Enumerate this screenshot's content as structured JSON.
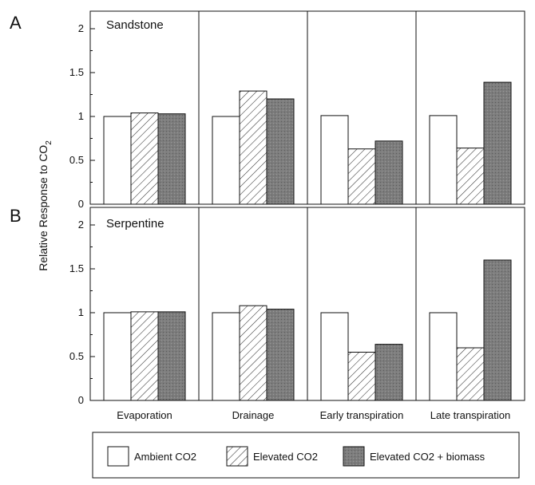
{
  "chart_data": {
    "type": "bar",
    "ylabel": "Relative Response to CO",
    "ylabel_sub": "2",
    "categories": [
      "Evaporation",
      "Drainage",
      "Early transpiration",
      "Late transpiration"
    ],
    "ylim": [
      0,
      2.2
    ],
    "yticks": [
      "0",
      "0.5",
      "1",
      "1.5",
      "2"
    ],
    "grid": false,
    "legend_position": "bottom",
    "legend": [
      {
        "name": "Ambient CO2",
        "style": "white"
      },
      {
        "name": "Elevated CO2",
        "style": "hatched"
      },
      {
        "name": "Elevated CO2 + biomass",
        "style": "gray"
      }
    ],
    "panels": [
      {
        "letter": "A",
        "title": "Sandstone",
        "series": [
          {
            "name": "Ambient CO2",
            "values": [
              1.0,
              1.0,
              1.01,
              1.01
            ]
          },
          {
            "name": "Elevated CO2",
            "values": [
              1.04,
              1.29,
              0.63,
              0.64
            ]
          },
          {
            "name": "Elevated CO2 + biomass",
            "values": [
              1.03,
              1.2,
              0.72,
              1.39
            ]
          }
        ]
      },
      {
        "letter": "B",
        "title": "Serpentine",
        "series": [
          {
            "name": "Ambient CO2",
            "values": [
              1.0,
              1.0,
              1.0,
              1.0
            ]
          },
          {
            "name": "Elevated CO2",
            "values": [
              1.01,
              1.08,
              0.55,
              0.6
            ]
          },
          {
            "name": "Elevated CO2 + biomass",
            "values": [
              1.01,
              1.04,
              0.64,
              1.6
            ]
          }
        ]
      }
    ]
  },
  "colors": {
    "ambient_fill": "#ffffff",
    "hatch_line": "#333333",
    "biomass_fill": "#7a7a7a",
    "axis": "#111111"
  }
}
